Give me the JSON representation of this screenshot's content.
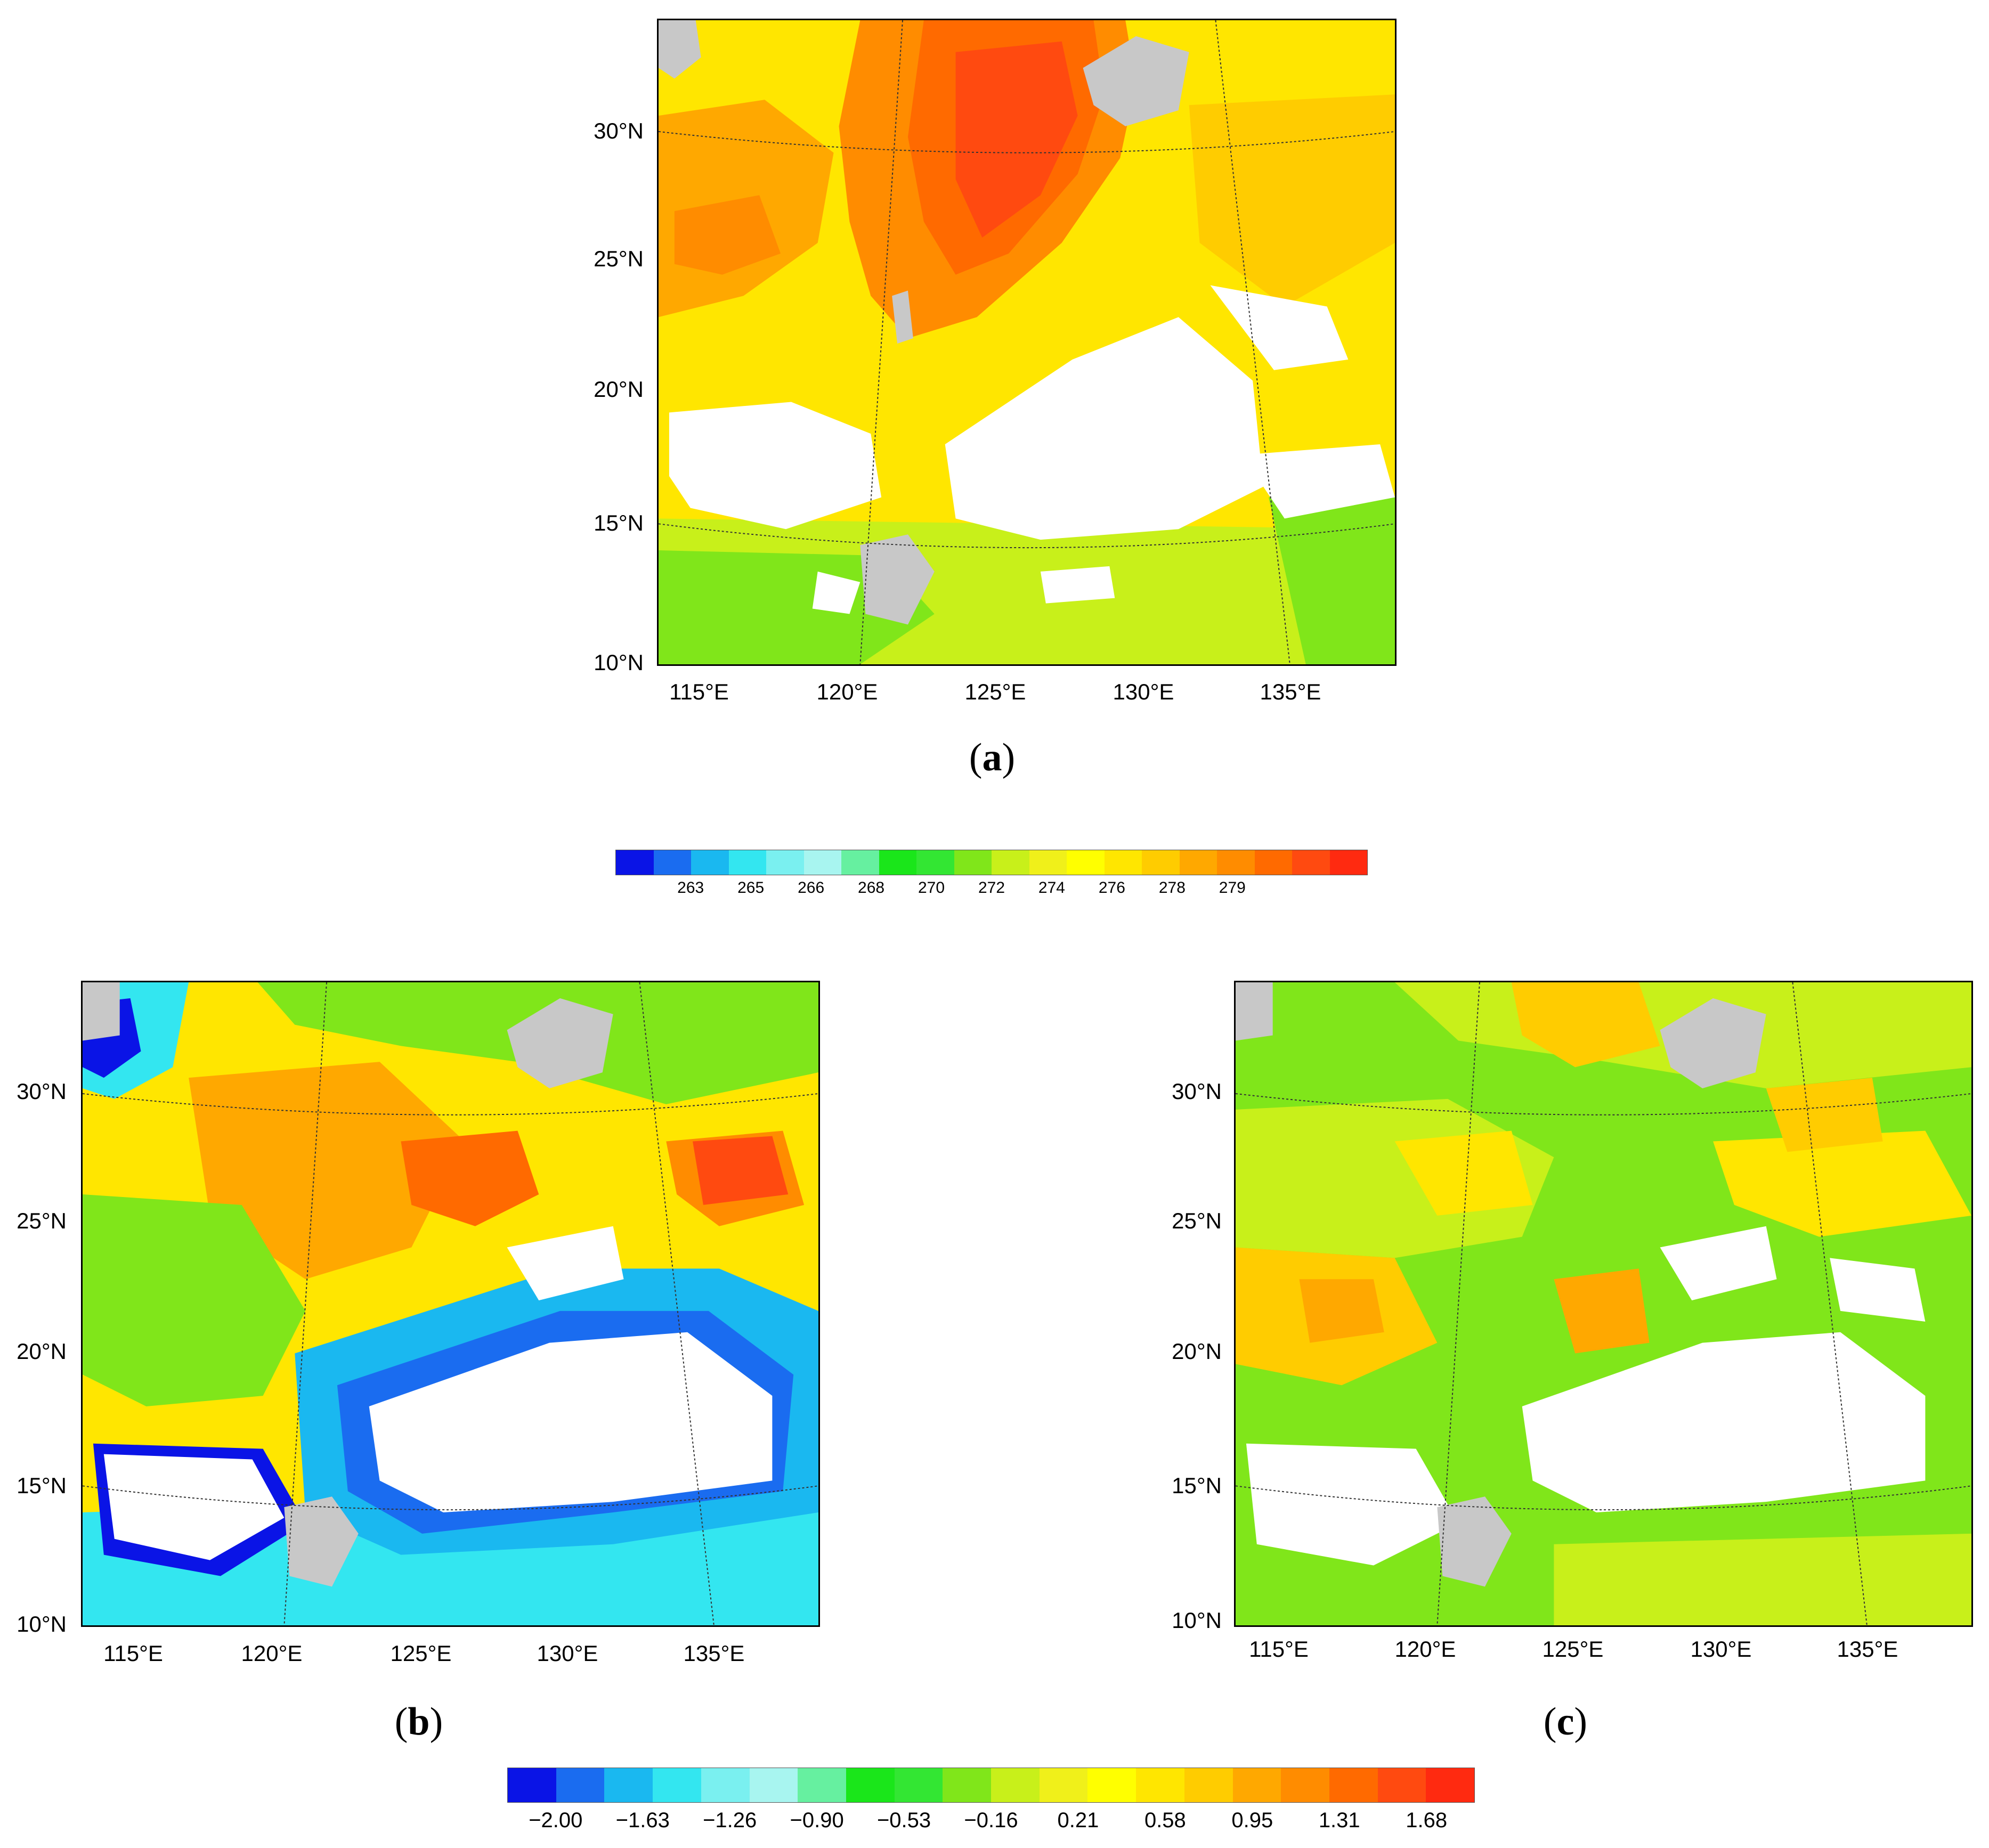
{
  "panels": [
    {
      "id": "a",
      "caption_letter": "a",
      "lat_labels": [
        "30°N",
        "25°N",
        "20°N",
        "15°N",
        "10°N"
      ],
      "lon_labels": [
        "115°E",
        "120°E",
        "125°E",
        "130°E",
        "135°E"
      ],
      "description_field": "brightness-temperature"
    },
    {
      "id": "b",
      "caption_letter": "b",
      "lat_labels": [
        "30°N",
        "25°N",
        "20°N",
        "15°N",
        "10°N"
      ],
      "lon_labels": [
        "115°E",
        "120°E",
        "125°E",
        "130°E",
        "135°E"
      ],
      "description_field": "difference"
    },
    {
      "id": "c",
      "caption_letter": "c",
      "lat_labels": [
        "30°N",
        "25°N",
        "20°N",
        "15°N",
        "10°N"
      ],
      "lon_labels": [
        "115°E",
        "120°E",
        "125°E",
        "130°E",
        "135°E"
      ],
      "description_field": "difference"
    }
  ],
  "colorbar_top": {
    "labels": [
      "263",
      "265",
      "266",
      "268",
      "270",
      "272",
      "274",
      "276",
      "278",
      "279"
    ],
    "colors": [
      "#0a14e6",
      "#1a6cf0",
      "#1ab8f0",
      "#33e6f0",
      "#7af0f0",
      "#a8f5f0",
      "#66f0a0",
      "#1ae61a",
      "#33e633",
      "#80e61a",
      "#c8f01a",
      "#f0f01a",
      "#ffff00",
      "#ffe600",
      "#ffcc00",
      "#ffa800",
      "#ff8c00",
      "#ff6a00",
      "#ff4a10",
      "#ff2a10"
    ]
  },
  "colorbar_bottom": {
    "labels": [
      "−2.00",
      "−1.63",
      "−1.26",
      "−0.90",
      "−0.53",
      "−0.16",
      "0.21",
      "0.58",
      "0.95",
      "1.31",
      "1.68"
    ],
    "colors": [
      "#0a14e6",
      "#1a6cf0",
      "#1ab8f0",
      "#33e6f0",
      "#7af0f0",
      "#a8f5f0",
      "#66f0a0",
      "#1ae61a",
      "#33e633",
      "#80e61a",
      "#c8f01a",
      "#f0f01a",
      "#ffff00",
      "#ffe600",
      "#ffcc00",
      "#ffa800",
      "#ff8c00",
      "#ff6a00",
      "#ff4a10",
      "#ff2a10"
    ]
  },
  "colors": {
    "land": "#c8c8c8",
    "missing": "#ffffff",
    "border": "#000000"
  }
}
